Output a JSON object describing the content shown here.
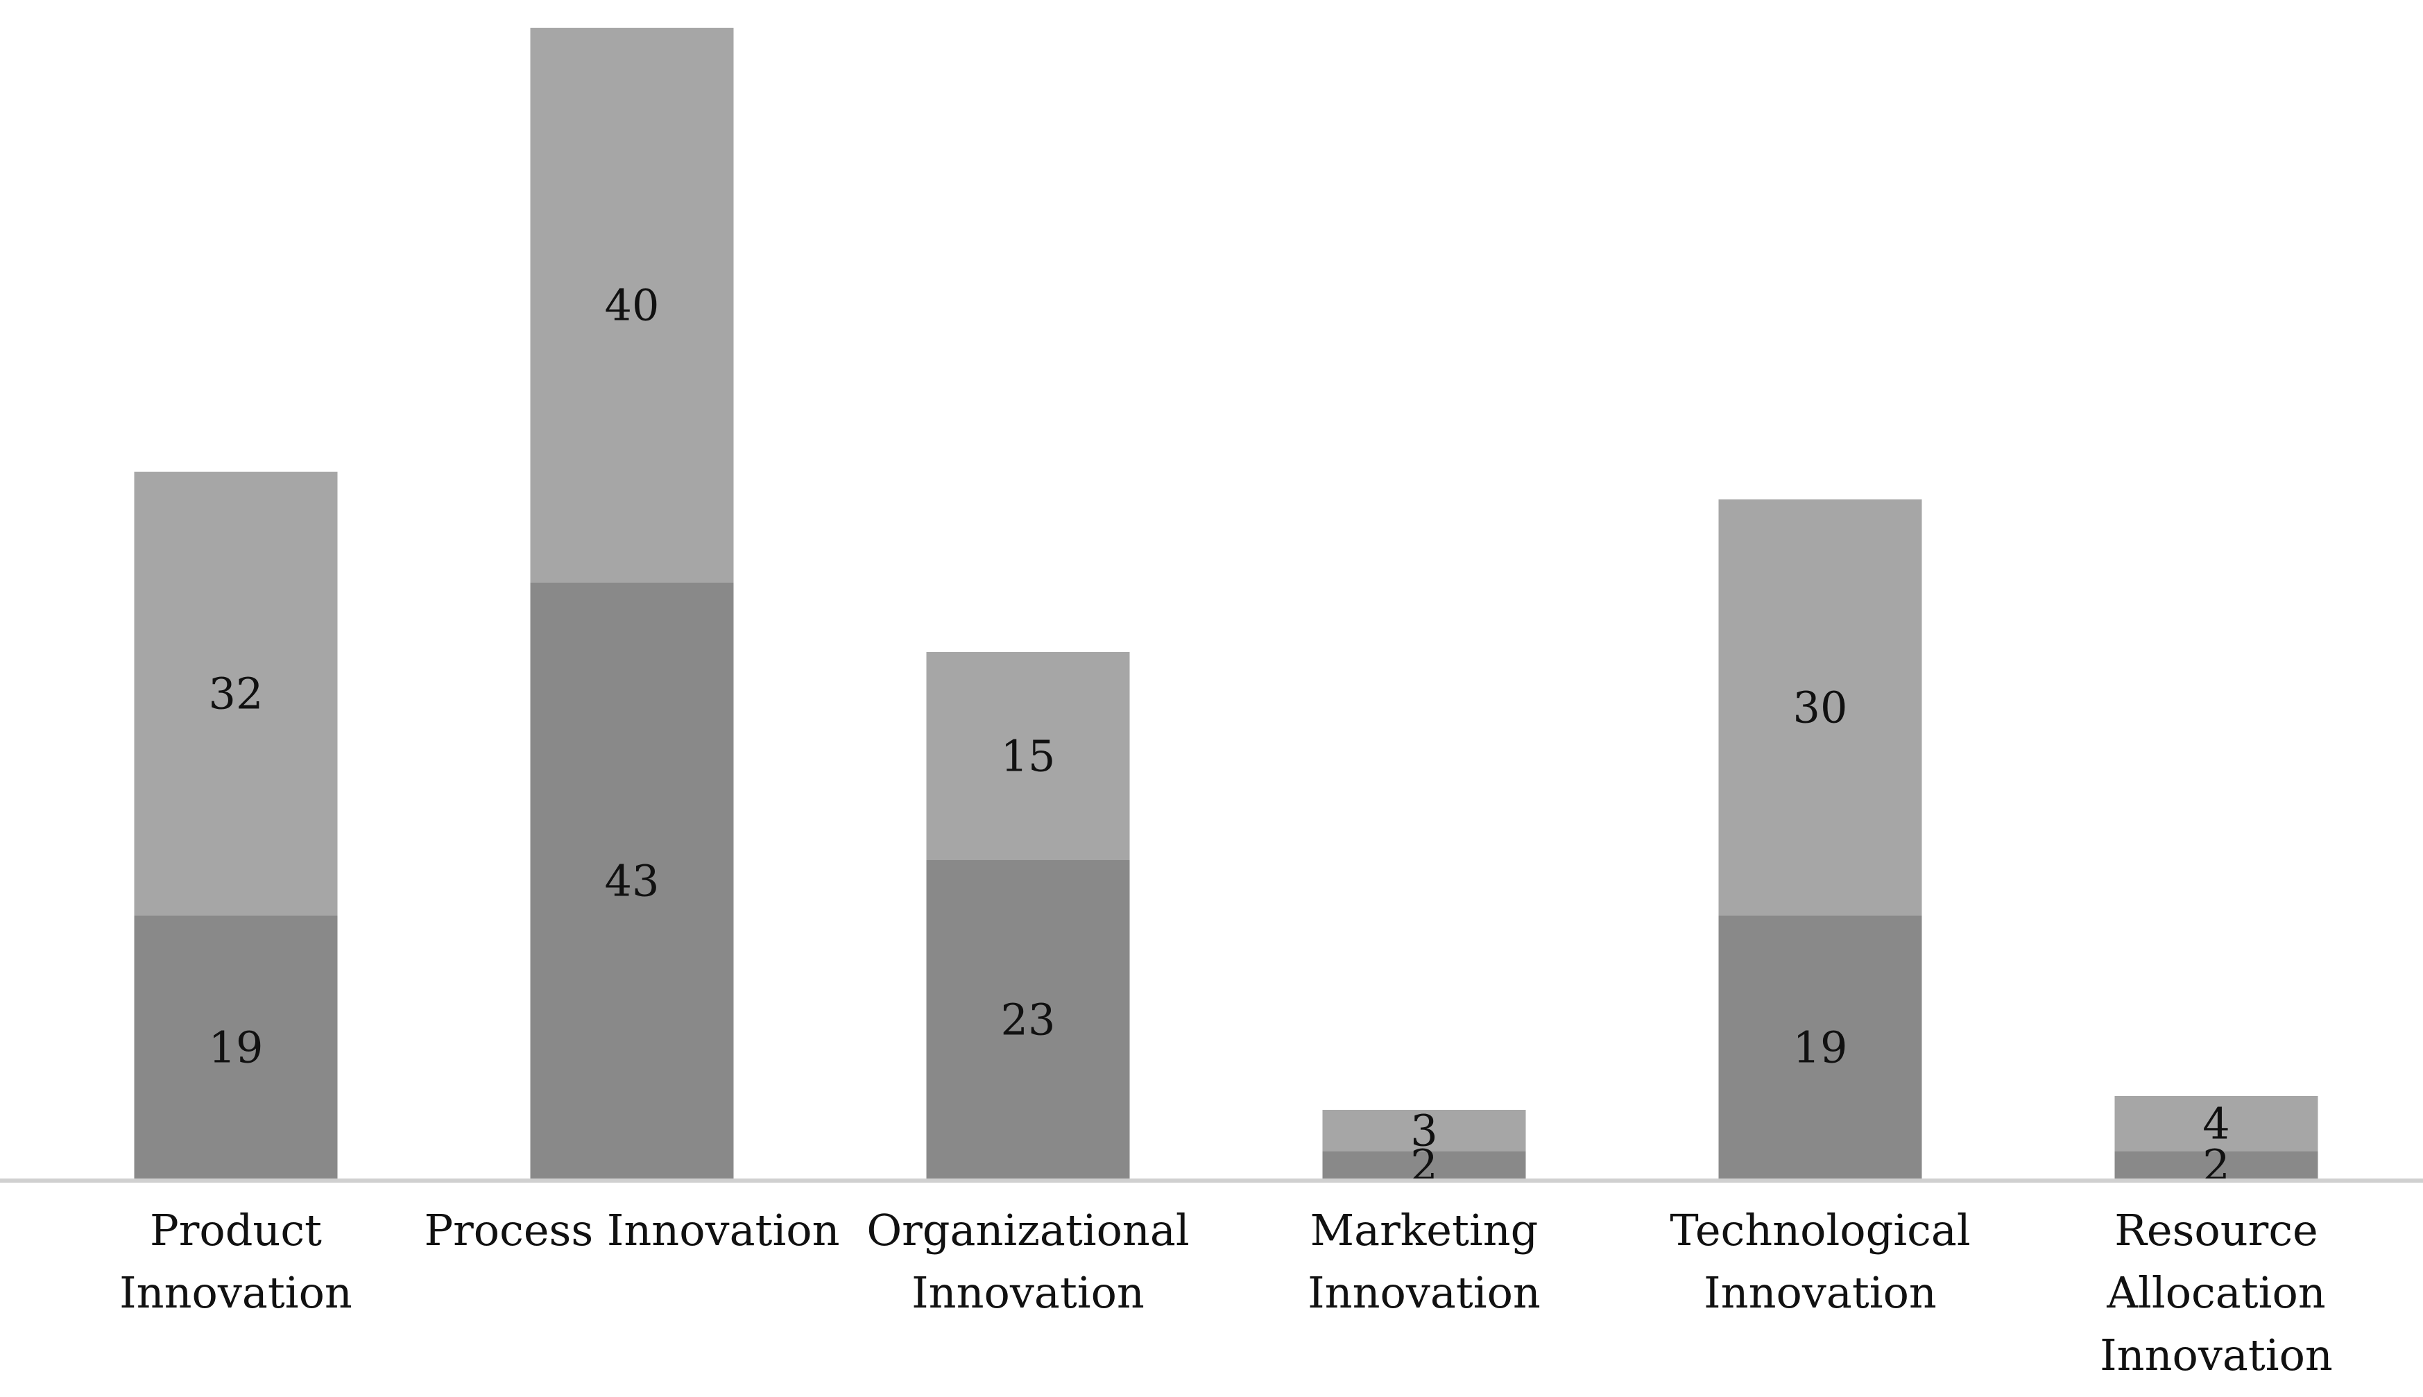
{
  "chart_data": {
    "type": "bar",
    "stacked": true,
    "categories": [
      [
        "Product",
        "Innovation"
      ],
      [
        "Process Innovation"
      ],
      [
        "Organizational",
        "Innovation"
      ],
      [
        "Marketing",
        "Innovation"
      ],
      [
        "Technological",
        "Innovation"
      ],
      [
        "Resource",
        "Allocation",
        "Innovation"
      ]
    ],
    "series": [
      {
        "values": [
          19,
          43,
          23,
          2,
          19,
          2
        ],
        "color": "#898989"
      },
      {
        "values": [
          32,
          40,
          15,
          3,
          30,
          4
        ],
        "color": "#a6a6a6"
      }
    ],
    "ylim": [
      0,
      83
    ],
    "title": "",
    "xlabel": "",
    "ylabel": "",
    "legend": "none",
    "grid": false,
    "axis_color": "#d0d0d0"
  }
}
